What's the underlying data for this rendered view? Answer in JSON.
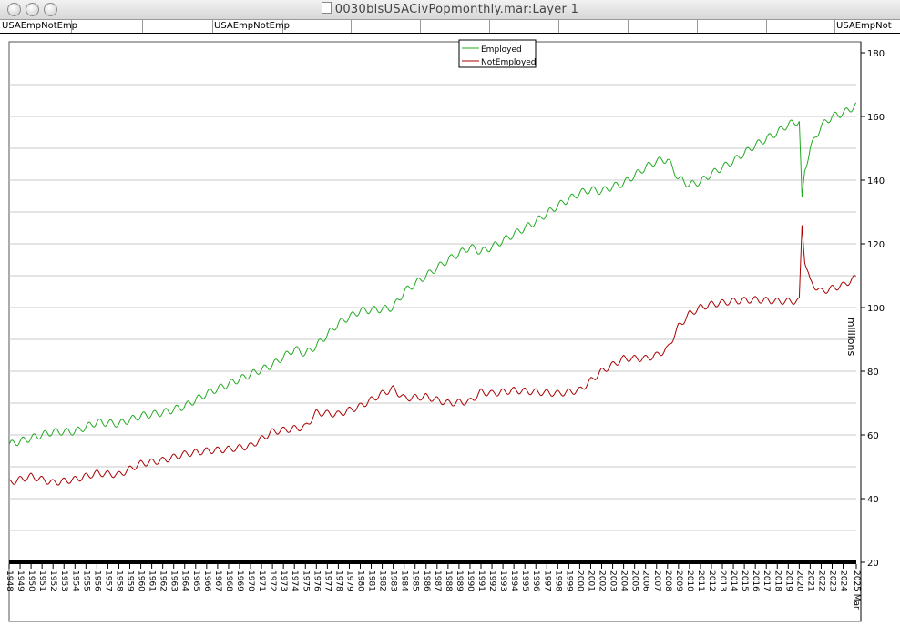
{
  "window": {
    "title": "0030blsUSACivPopmonthly.mar:Layer 1"
  },
  "header": {
    "left_label": "USAEmpNotEmp",
    "center_label": "USAEmpNotEmp",
    "right_label": "USAEmpNot"
  },
  "chart_data": {
    "type": "line",
    "ylabel": "millions",
    "ylim": [
      20,
      180
    ],
    "yticks": [
      20,
      40,
      60,
      80,
      100,
      120,
      140,
      160,
      180
    ],
    "y_axis_side": "right",
    "grid": true,
    "legend_position": "top-center",
    "x_range": [
      1948.0,
      2025.2
    ],
    "xticks": [
      "1948",
      "1949",
      "1950",
      "1951",
      "1952",
      "1953",
      "1954",
      "1955",
      "1956",
      "1957",
      "1958",
      "1959",
      "1960",
      "1961",
      "1962",
      "1963",
      "1964",
      "1965",
      "1966",
      "1967",
      "1968",
      "1969",
      "1970",
      "1971",
      "1972",
      "1973",
      "1974",
      "1975",
      "1976",
      "1977",
      "1978",
      "1979",
      "1980",
      "1981",
      "1982",
      "1983",
      "1984",
      "1985",
      "1986",
      "1987",
      "1988",
      "1989",
      "1990",
      "1991",
      "1992",
      "1993",
      "1994",
      "1995",
      "1996",
      "1997",
      "1998",
      "1999",
      "2000",
      "2001",
      "2002",
      "2003",
      "2004",
      "2005",
      "2006",
      "2007",
      "2008",
      "2009",
      "2010",
      "2011",
      "2012",
      "2013",
      "2014",
      "2015",
      "2016",
      "2017",
      "2018",
      "2019",
      "2020",
      "2021",
      "2022",
      "2023",
      "2024",
      "2025 Mar"
    ],
    "series": [
      {
        "name": "Employed",
        "color": "#22aa22",
        "x": [
          1948,
          1950,
          1952,
          1954,
          1956,
          1958,
          1960,
          1962,
          1964,
          1966,
          1968,
          1970,
          1972,
          1974,
          1975,
          1976,
          1978,
          1980,
          1982,
          1983,
          1984,
          1986,
          1988,
          1990,
          1991,
          1992,
          1994,
          1996,
          1998,
          2000,
          2001,
          2002,
          2003,
          2004,
          2006,
          2007,
          2008,
          2009,
          2010,
          2011,
          2012,
          2014,
          2016,
          2018,
          2019,
          2020.0,
          2020.25,
          2020.5,
          2021,
          2022,
          2023,
          2024,
          2025.2
        ],
        "values": [
          57,
          59,
          61,
          61,
          64,
          63.5,
          66,
          67,
          69,
          73,
          76,
          79,
          82,
          87,
          85.5,
          88,
          95,
          99,
          99.5,
          100,
          105,
          110,
          115,
          119,
          117.5,
          119,
          123,
          127,
          132,
          136,
          137,
          136.5,
          138,
          139,
          144,
          146,
          146.5,
          140.5,
          138.5,
          139.5,
          142,
          146,
          151,
          155,
          157.5,
          158.5,
          133.5,
          143,
          150,
          157,
          160,
          161,
          163.5
        ]
      },
      {
        "name": "NotEmployed",
        "color": "#aa0000",
        "x": [
          1948,
          1950,
          1952,
          1954,
          1956,
          1958,
          1960,
          1962,
          1964,
          1966,
          1968,
          1970,
          1972,
          1974,
          1975,
          1976,
          1978,
          1980,
          1982,
          1983,
          1984,
          1986,
          1988,
          1990,
          1991,
          1992,
          1994,
          1996,
          1998,
          2000,
          2001,
          2002,
          2003,
          2004,
          2006,
          2007,
          2008,
          2009,
          2010,
          2011,
          2012,
          2014,
          2016,
          2018,
          2019,
          2020.0,
          2020.25,
          2020.5,
          2021,
          2022,
          2023,
          2024,
          2025.2
        ],
        "values": [
          45,
          47,
          45,
          46,
          48,
          47.5,
          51,
          52,
          54,
          55,
          55.5,
          56.5,
          61,
          62,
          62.5,
          67,
          66.5,
          69,
          73,
          74.5,
          71.5,
          72,
          70,
          70.5,
          73.5,
          73,
          74,
          73.5,
          73,
          74,
          77,
          80,
          82,
          84,
          84,
          85,
          87,
          94,
          98,
          100,
          101,
          102,
          102.5,
          102,
          102,
          102,
          126,
          115,
          108,
          105,
          106,
          107,
          109.5
        ]
      }
    ]
  }
}
